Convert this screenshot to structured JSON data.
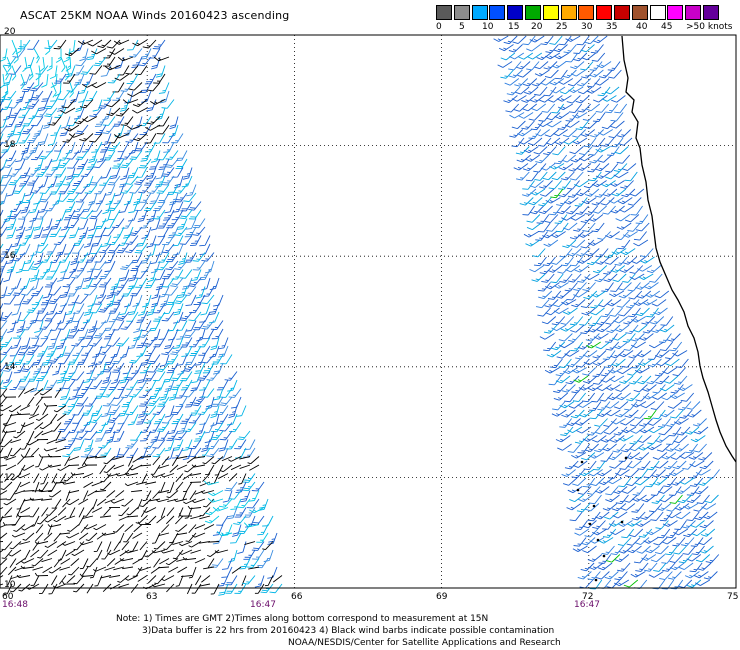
{
  "header": {
    "title": "ASCAT 25KM NOAA Winds 20160423 ascending"
  },
  "colorbar": {
    "colors": [
      "#5a5a5a",
      "#8c8c8c",
      "#00aaff",
      "#0050ff",
      "#0000c8",
      "#00aa00",
      "#ffff00",
      "#ffaa00",
      "#ff5a00",
      "#ff0000",
      "#c80000",
      "#a0522d",
      "#ffffff",
      "#ff00ff",
      "#c800c8",
      "#64009a"
    ],
    "labels": [
      "0",
      "5",
      "10",
      "15",
      "20",
      "25",
      "30",
      "35",
      "40",
      "45",
      ">50 knots"
    ]
  },
  "map": {
    "lon_range": [
      60,
      75
    ],
    "lat_range": [
      10,
      20
    ],
    "lat_labels": [
      "20",
      "18",
      "16",
      "14",
      "12",
      "10"
    ],
    "lon_labels": [
      "60",
      "63",
      "66",
      "69",
      "72",
      "75"
    ],
    "time_labels": [
      "16:48",
      "16:47",
      "16:47"
    ]
  },
  "notes": {
    "line1": "Note: 1) Times are GMT 2)Times along bottom correspond to measurement at 15N",
    "line2": "3)Data buffer is 22 hrs from 20160423 4) Black wind barbs indicate possible contamination",
    "line3": "NOAA/NESDIS/Center for Satellite Applications and Research"
  }
}
